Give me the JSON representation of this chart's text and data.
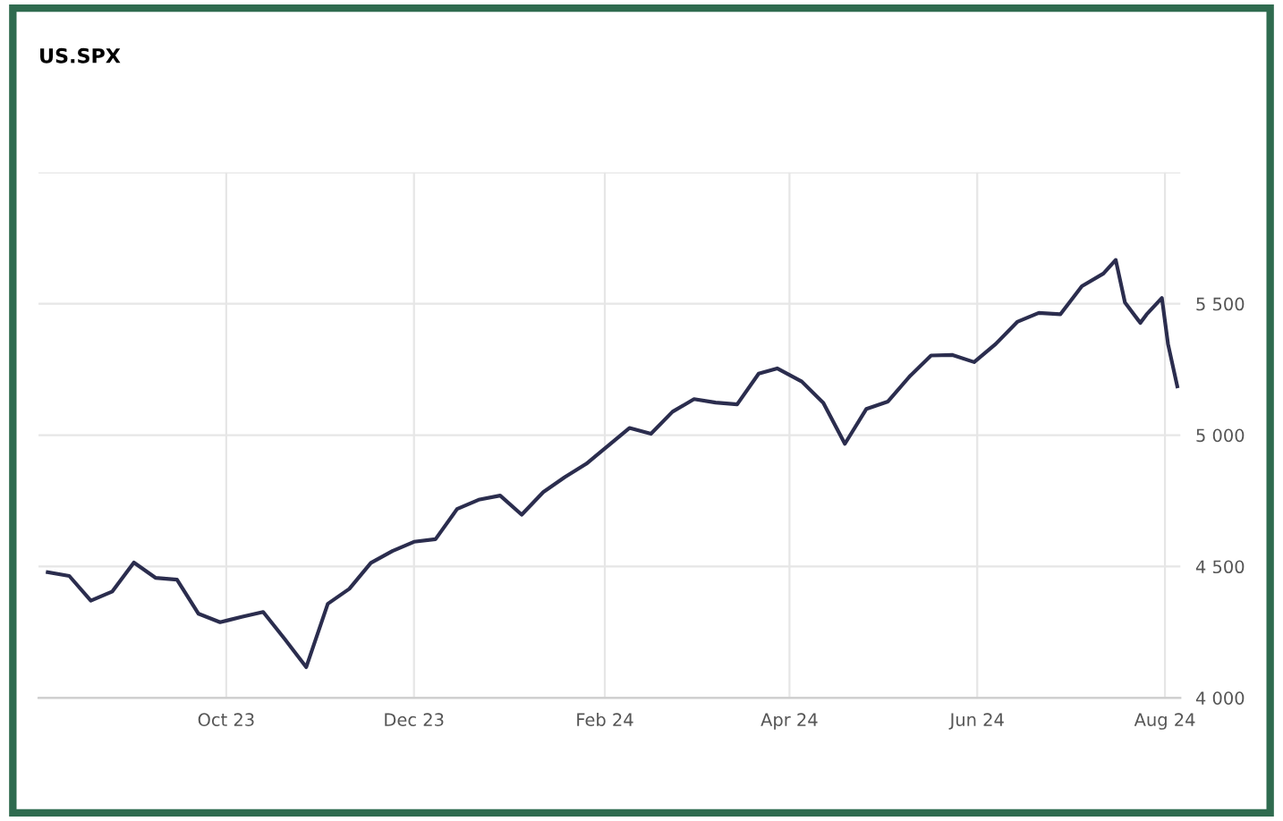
{
  "chart_data": {
    "type": "line",
    "title": "US.SPX",
    "x": [
      "2023-08-04",
      "2023-08-11",
      "2023-08-18",
      "2023-08-25",
      "2023-09-01",
      "2023-09-08",
      "2023-09-15",
      "2023-09-22",
      "2023-09-29",
      "2023-10-06",
      "2023-10-13",
      "2023-10-20",
      "2023-10-27",
      "2023-11-03",
      "2023-11-10",
      "2023-11-17",
      "2023-11-24",
      "2023-12-01",
      "2023-12-08",
      "2023-12-15",
      "2023-12-22",
      "2023-12-29",
      "2024-01-05",
      "2024-01-12",
      "2024-01-19",
      "2024-01-26",
      "2024-02-02",
      "2024-02-09",
      "2024-02-16",
      "2024-02-23",
      "2024-03-01",
      "2024-03-08",
      "2024-03-15",
      "2024-03-22",
      "2024-03-28",
      "2024-04-05",
      "2024-04-12",
      "2024-04-19",
      "2024-04-26",
      "2024-05-03",
      "2024-05-10",
      "2024-05-17",
      "2024-05-24",
      "2024-05-31",
      "2024-06-07",
      "2024-06-14",
      "2024-06-21",
      "2024-06-28",
      "2024-07-05",
      "2024-07-12",
      "2024-07-16",
      "2024-07-19",
      "2024-07-24",
      "2024-07-26",
      "2024-07-31",
      "2024-08-02",
      "2024-08-05"
    ],
    "series": [
      {
        "color": "#2b2d4e",
        "values": [
          4478,
          4464,
          4370,
          4405,
          4515,
          4457,
          4450,
          4320,
          4288,
          4308,
          4327,
          4224,
          4117,
          4358,
          4415,
          4514,
          4559,
          4594,
          4604,
          4719,
          4754,
          4770,
          4697,
          4783,
          4840,
          4891,
          4959,
          5027,
          5005,
          5089,
          5137,
          5124,
          5117,
          5234,
          5254,
          5204,
          5123,
          4967,
          5100,
          5128,
          5223,
          5303,
          5305,
          5278,
          5347,
          5431,
          5465,
          5460,
          5567,
          5615,
          5667,
          5505,
          5427,
          5459,
          5522,
          5346,
          5186
        ]
      }
    ],
    "xlim": [
      "2023-08-01",
      "2024-08-06"
    ],
    "xticks": [
      {
        "value": "2023-10-01",
        "label": "Oct 23"
      },
      {
        "value": "2023-12-01",
        "label": "Dec 23"
      },
      {
        "value": "2024-02-01",
        "label": "Feb 24"
      },
      {
        "value": "2024-04-01",
        "label": "Apr 24"
      },
      {
        "value": "2024-06-01",
        "label": "Jun 24"
      },
      {
        "value": "2024-08-01",
        "label": "Aug 24"
      }
    ],
    "ylim": [
      4000,
      6000
    ],
    "yticks": [
      {
        "value": 4000,
        "label": "4 000"
      },
      {
        "value": 4500,
        "label": "4 500"
      },
      {
        "value": 5000,
        "label": "5 000"
      },
      {
        "value": 5500,
        "label": "5 500"
      },
      {
        "value": 6000,
        "label": null
      }
    ],
    "grid": true,
    "marker": "none",
    "line_style": "solid"
  }
}
